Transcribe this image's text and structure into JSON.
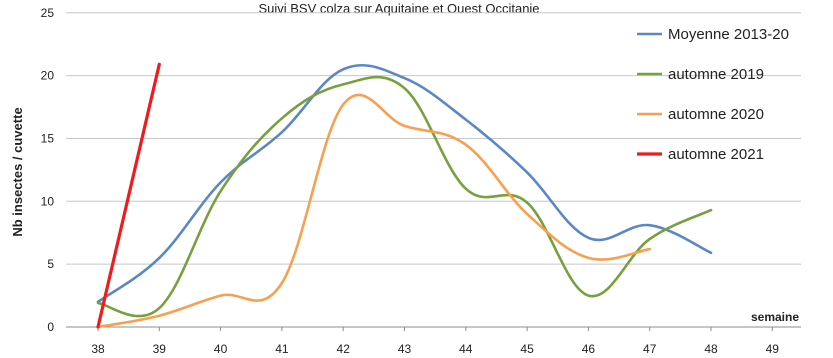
{
  "chart_data": {
    "type": "line",
    "title": "Suivi BSV colza sur Aquitaine et Ouest Occitanie",
    "xlabel": "semaine",
    "ylabel": "Nb insectes / cuvette",
    "xlim": [
      38,
      49
    ],
    "ylim": [
      0,
      25
    ],
    "x_ticks": [
      "38",
      "39",
      "40",
      "41",
      "42",
      "43",
      "44",
      "45",
      "46",
      "47",
      "48",
      "49"
    ],
    "y_ticks": [
      "0",
      "5",
      "10",
      "15",
      "20",
      "25"
    ],
    "grid": "horizontal",
    "legend_position": "top-right",
    "series": [
      {
        "name": "Moyenne 2013-20",
        "color": "#5B87C5",
        "points": [
          [
            38,
            2.0
          ],
          [
            39,
            5.5
          ],
          [
            40,
            11.5
          ],
          [
            41,
            15.5
          ],
          [
            42,
            20.5
          ],
          [
            43,
            19.8
          ],
          [
            44,
            16.5
          ],
          [
            45,
            12.3
          ],
          [
            46,
            7.1
          ],
          [
            47,
            8.1
          ],
          [
            48,
            5.9
          ]
        ]
      },
      {
        "name": "automne 2019",
        "color": "#77A03E",
        "points": [
          [
            38,
            1.9
          ],
          [
            39,
            1.5
          ],
          [
            40,
            10.8
          ],
          [
            41,
            16.6
          ],
          [
            42,
            19.3
          ],
          [
            43,
            19.0
          ],
          [
            44,
            11.0
          ],
          [
            45,
            9.9
          ],
          [
            46,
            2.5
          ],
          [
            47,
            7.0
          ],
          [
            48,
            9.3
          ]
        ]
      },
      {
        "name": "automne 2020",
        "color": "#F7A050",
        "points": [
          [
            38,
            0.0
          ],
          [
            39,
            0.9
          ],
          [
            40,
            2.5
          ],
          [
            41,
            3.5
          ],
          [
            42,
            17.7
          ],
          [
            43,
            16.0
          ],
          [
            44,
            14.5
          ],
          [
            45,
            9.0
          ],
          [
            46,
            5.5
          ],
          [
            47,
            6.2
          ]
        ]
      },
      {
        "name": "automne 2021",
        "color": "#EE1C1C",
        "points": [
          [
            38,
            0.0
          ],
          [
            39,
            20.9
          ]
        ]
      }
    ]
  }
}
